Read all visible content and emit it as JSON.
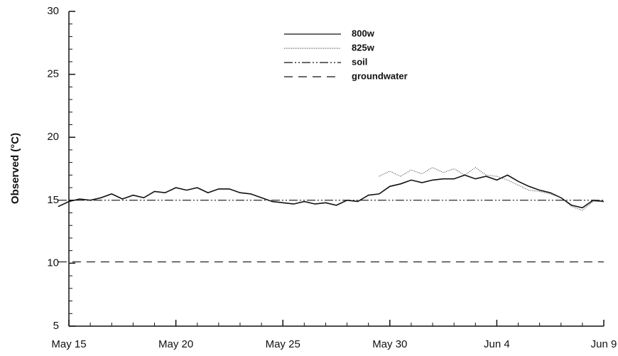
{
  "chart_data": {
    "type": "line",
    "ylabel": "Observed (°C)",
    "xlim": [
      0,
      25
    ],
    "xticks": [
      {
        "value": 0,
        "label": "May 15"
      },
      {
        "value": 5,
        "label": "May 20"
      },
      {
        "value": 10,
        "label": "May 25"
      },
      {
        "value": 15,
        "label": "May 30"
      },
      {
        "value": 20,
        "label": "Jun 4"
      },
      {
        "value": 25,
        "label": "Jun 9"
      }
    ],
    "xminorticks": [
      1,
      2,
      3,
      4,
      6,
      7,
      8,
      9,
      11,
      12,
      13,
      14,
      16,
      17,
      18,
      19,
      21,
      22,
      23,
      24
    ],
    "ylim": [
      5,
      30
    ],
    "yticks": [
      5,
      10,
      15,
      20,
      25,
      30
    ],
    "yminorticks": [
      6,
      7,
      8,
      9,
      11,
      12,
      13,
      14,
      16,
      17,
      18,
      19,
      21,
      22,
      23,
      24,
      26,
      27,
      28,
      29
    ],
    "x": [
      -0.5,
      0,
      0.5,
      1,
      1.5,
      2,
      2.5,
      3,
      3.5,
      4,
      4.5,
      5,
      5.5,
      6,
      6.5,
      7,
      7.5,
      8,
      8.5,
      9,
      9.5,
      10,
      10.5,
      11,
      11.5,
      12,
      12.5,
      13,
      13.5,
      14,
      14.5,
      15,
      15.5,
      16,
      16.5,
      17,
      17.5,
      18,
      18.5,
      19,
      19.5,
      20,
      20.5,
      21,
      21.5,
      22,
      22.5,
      23,
      23.5,
      24,
      24.5,
      25
    ],
    "series": [
      {
        "name": "800w",
        "color": "#111111",
        "dash": "solid",
        "values": [
          14.5,
          14.9,
          15.1,
          15.0,
          15.2,
          15.5,
          15.1,
          15.4,
          15.2,
          15.7,
          15.6,
          16.0,
          15.8,
          16.0,
          15.6,
          15.9,
          15.9,
          15.6,
          15.5,
          15.2,
          14.9,
          14.8,
          14.7,
          14.9,
          14.7,
          14.8,
          14.6,
          15.0,
          14.9,
          15.4,
          15.5,
          16.1,
          16.3,
          16.6,
          16.4,
          16.6,
          16.7,
          16.7,
          17.0,
          16.7,
          16.9,
          16.6,
          17.0,
          16.5,
          16.1,
          15.8,
          15.6,
          15.2,
          14.6,
          14.4,
          15.0,
          14.9
        ]
      },
      {
        "name": "825w",
        "color": "#444444",
        "dash": "dotted",
        "values": [
          null,
          null,
          null,
          null,
          null,
          null,
          null,
          null,
          null,
          null,
          null,
          null,
          null,
          null,
          null,
          null,
          null,
          null,
          null,
          null,
          null,
          null,
          null,
          null,
          null,
          null,
          null,
          null,
          null,
          null,
          16.9,
          17.3,
          16.9,
          17.4,
          17.1,
          17.6,
          17.2,
          17.5,
          17.0,
          17.6,
          17.0,
          16.9,
          16.6,
          16.2,
          15.8,
          15.7,
          15.5,
          15.2,
          14.5,
          14.2,
          14.9,
          14.9
        ]
      },
      {
        "name": "soil",
        "color": "#111111",
        "dash": "dashdotdot",
        "x": [
          -0.5,
          25
        ],
        "values": [
          15.0,
          15.0
        ]
      },
      {
        "name": "groundwater",
        "color": "#111111",
        "dash": "dashed",
        "x": [
          -0.5,
          25
        ],
        "values": [
          10.1,
          10.1
        ]
      }
    ]
  }
}
